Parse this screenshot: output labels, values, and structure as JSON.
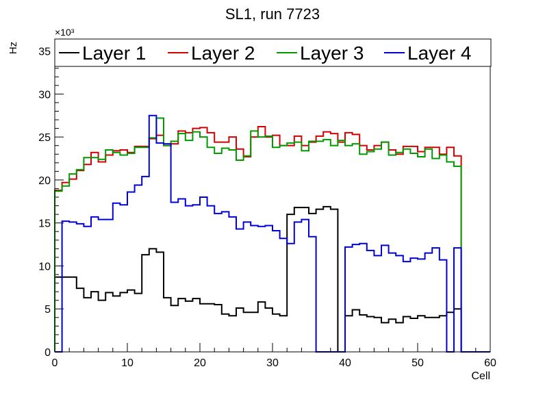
{
  "chart_data": {
    "type": "line",
    "style": "step-histogram",
    "title": "SL1, run 7723",
    "xlabel": "Cell",
    "ylabel": "Hz",
    "y_multiplier": "×10³",
    "xlim": [
      0,
      60
    ],
    "ylim": [
      0,
      36.4
    ],
    "x_ticks": [
      0,
      10,
      20,
      30,
      40,
      50,
      60
    ],
    "y_ticks": [
      0,
      5,
      10,
      15,
      20,
      25,
      30,
      35
    ],
    "legend_position": "top",
    "bin_width": 1,
    "series": [
      {
        "name": "Layer 1",
        "color": "#000000",
        "values": [
          8.7,
          8.7,
          8.7,
          7.4,
          6.3,
          7.0,
          6.0,
          6.9,
          6.5,
          6.9,
          7.2,
          6.8,
          11.3,
          12.0,
          11.6,
          6.3,
          5.4,
          6.2,
          5.9,
          6.2,
          5.6,
          5.6,
          5.5,
          4.4,
          4.2,
          5.1,
          4.6,
          4.6,
          5.8,
          5.1,
          4.4,
          4.2,
          16.0,
          16.8,
          16.8,
          16.1,
          16.6,
          16.9,
          16.6,
          0,
          4.2,
          4.9,
          4.3,
          4.1,
          4.0,
          3.4,
          3.8,
          3.4,
          4.1,
          3.9,
          4.2,
          4.0,
          4.0,
          4.2,
          4.6,
          5.0,
          0,
          0,
          0,
          0
        ]
      },
      {
        "name": "Layer 2",
        "color": "#d40000",
        "values": [
          18.8,
          19.7,
          20.1,
          21.1,
          21.8,
          23.2,
          22.1,
          22.9,
          23.4,
          23.5,
          23.2,
          23.9,
          23.9,
          24.8,
          25.2,
          24.0,
          24.2,
          25.7,
          25.5,
          26.0,
          26.1,
          25.5,
          24.4,
          24.4,
          25.0,
          23.6,
          22.7,
          25.0,
          26.2,
          25.0,
          25.2,
          24.0,
          24.0,
          25.1,
          24.0,
          24.4,
          25.1,
          25.6,
          25.4,
          24.4,
          25.5,
          25.3,
          24.0,
          23.5,
          24.0,
          24.4,
          23.5,
          23.0,
          23.9,
          23.9,
          23.3,
          23.8,
          23.8,
          23.0,
          23.8,
          22.8,
          0,
          0,
          0,
          0
        ]
      },
      {
        "name": "Layer 3",
        "color": "#009a00",
        "values": [
          18.7,
          19.3,
          20.7,
          21.2,
          22.6,
          22.6,
          22.4,
          23.5,
          23.2,
          22.9,
          23.1,
          23.8,
          23.8,
          24.9,
          27.2,
          24.0,
          24.5,
          25.4,
          24.6,
          25.6,
          25.0,
          23.8,
          23.1,
          23.7,
          23.5,
          22.3,
          22.8,
          25.7,
          25.0,
          25.1,
          23.8,
          24.0,
          24.3,
          24.4,
          23.4,
          24.5,
          24.5,
          24.7,
          24.0,
          24.6,
          24.0,
          24.2,
          23.0,
          23.3,
          23.6,
          24.4,
          22.9,
          23.2,
          23.6,
          23.1,
          22.7,
          23.6,
          22.5,
          22.9,
          22.1,
          21.6,
          0,
          0,
          0,
          0
        ]
      },
      {
        "name": "Layer 4",
        "color": "#0000d8",
        "values": [
          0,
          15.2,
          15.1,
          14.9,
          14.6,
          15.7,
          15.4,
          15.4,
          17.3,
          17.1,
          18.6,
          19.4,
          20.4,
          27.5,
          24.3,
          24.2,
          17.4,
          17.8,
          17.0,
          17.1,
          18.0,
          17.0,
          16.1,
          16.3,
          15.7,
          14.3,
          15.1,
          14.7,
          14.6,
          14.7,
          14.1,
          13.2,
          12.6,
          15.1,
          15.4,
          13.4,
          0,
          0,
          0,
          0,
          12.2,
          12.5,
          12.6,
          11.8,
          11.2,
          12.4,
          11.5,
          11.2,
          10.5,
          10.9,
          10.8,
          11.5,
          12.1,
          10.7,
          0,
          12.1,
          0,
          0,
          0,
          0
        ]
      }
    ]
  }
}
